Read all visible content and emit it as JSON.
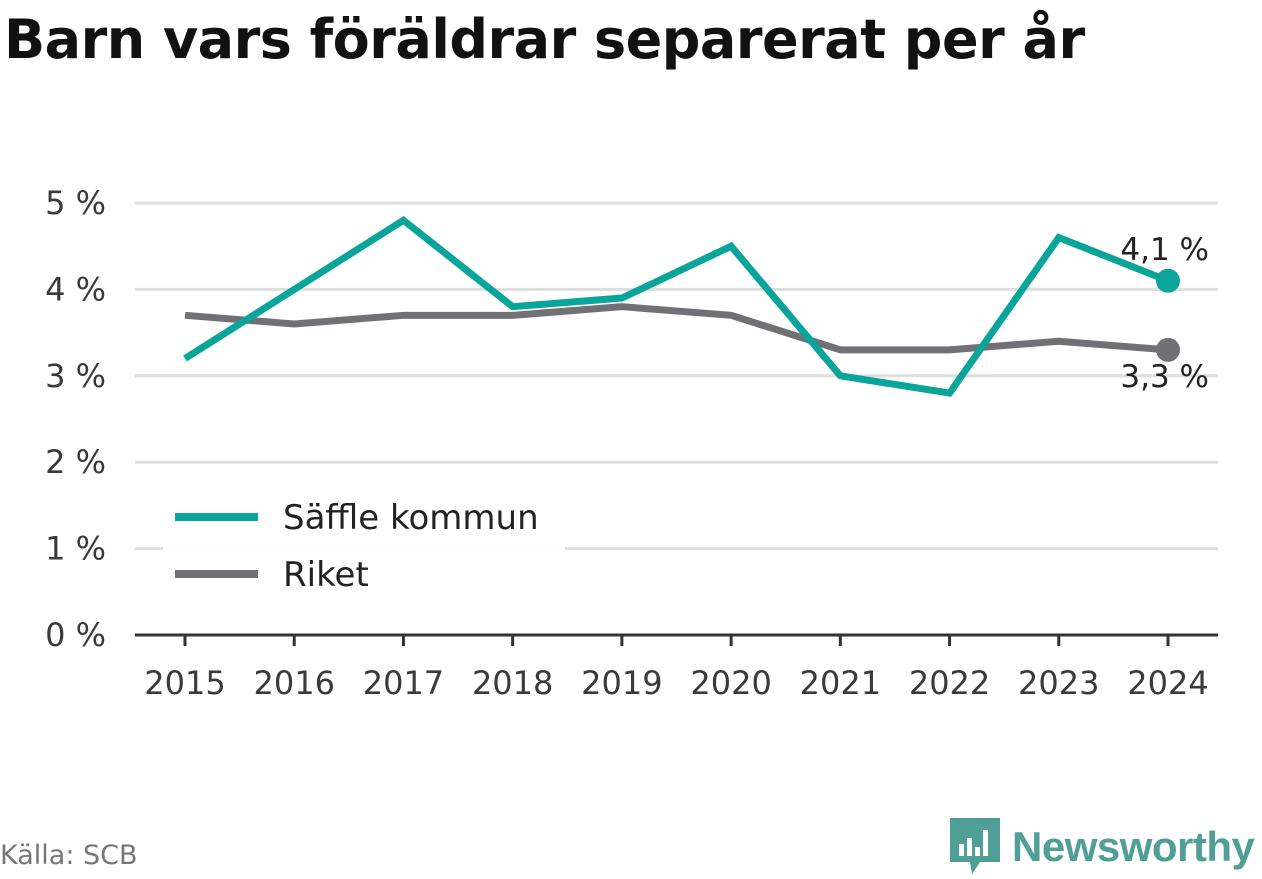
{
  "title": "Barn vars föräldrar separerat per år",
  "source": "Källa: SCB",
  "brand": {
    "name": "Newsworthy",
    "logo_icon": "bar-chart-speech-bubble-icon",
    "color": "#4f9f96"
  },
  "chart_data": {
    "type": "line",
    "categories": [
      "2015",
      "2016",
      "2017",
      "2018",
      "2019",
      "2020",
      "2021",
      "2022",
      "2023",
      "2024"
    ],
    "series": [
      {
        "name": "Säffle kommun",
        "color": "#0aa59a",
        "values": [
          3.2,
          4.0,
          4.8,
          3.8,
          3.9,
          4.5,
          3.0,
          2.8,
          4.6,
          4.1
        ],
        "end_label": "4,1 %"
      },
      {
        "name": "Riket",
        "color": "#717075",
        "values": [
          3.7,
          3.6,
          3.7,
          3.7,
          3.8,
          3.7,
          3.3,
          3.3,
          3.4,
          3.3
        ],
        "end_label": "3,3 %"
      }
    ],
    "ylim": [
      0,
      5
    ],
    "yticks": [
      0,
      1,
      2,
      3,
      4,
      5
    ],
    "ytick_labels": [
      "0 %",
      "1 %",
      "2 %",
      "3 %",
      "4 %",
      "5 %"
    ],
    "xlabel": "",
    "ylabel": "",
    "grid": true,
    "legend_position": "lower-left"
  }
}
